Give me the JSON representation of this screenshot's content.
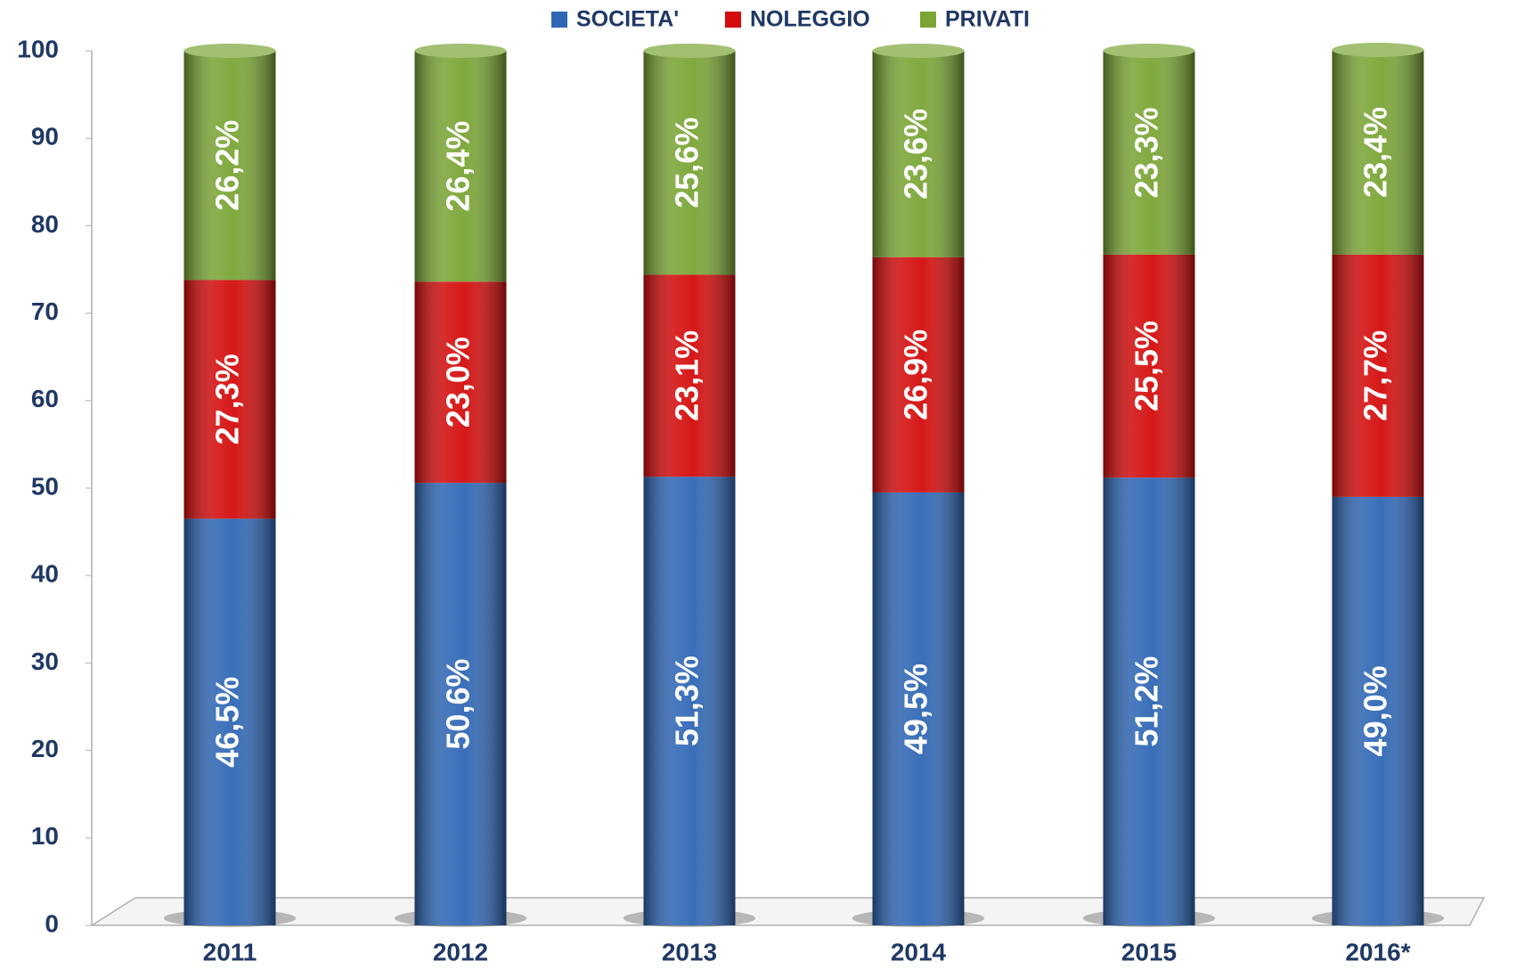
{
  "chart_data": {
    "type": "stacked_bar",
    "categories": [
      "2011",
      "2012",
      "2013",
      "2014",
      "2015",
      "2016*"
    ],
    "series": [
      {
        "name": "SOCIETA'",
        "color": "#2f67b5",
        "values": [
          46.5,
          50.6,
          51.3,
          49.5,
          51.2,
          49.0
        ],
        "value_labels": [
          "46,5%",
          "50,6%",
          "51,3%",
          "49,5%",
          "51,2%",
          "49,0%"
        ]
      },
      {
        "name": "NOLEGGIO",
        "color": "#d40c0c",
        "values": [
          27.3,
          23.0,
          23.1,
          26.9,
          25.5,
          27.7
        ],
        "value_labels": [
          "27,3%",
          "23,0%",
          "23,1%",
          "26,9%",
          "25,5%",
          "27,7%"
        ]
      },
      {
        "name": "PRIVATI",
        "color": "#7aa535",
        "values": [
          26.2,
          26.4,
          25.6,
          23.6,
          23.3,
          23.4
        ],
        "value_labels": [
          "26,2%",
          "26,4%",
          "25,6%",
          "23,6%",
          "23,3%",
          "23,4%"
        ]
      }
    ],
    "ylim": [
      0,
      100
    ],
    "yticks": [
      0,
      10,
      20,
      30,
      40,
      50,
      60,
      70,
      80,
      90,
      100
    ],
    "legend": "top"
  }
}
